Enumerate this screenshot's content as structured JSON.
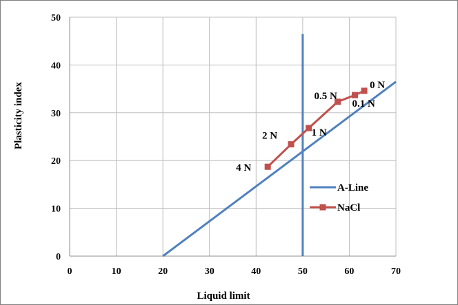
{
  "chart_data": {
    "type": "line",
    "title": "",
    "xlabel": "Liquid  limit",
    "ylabel": "Plasticity  index",
    "xlim": [
      0,
      70
    ],
    "ylim": [
      0,
      50
    ],
    "x_ticks": [
      "0",
      "10",
      "20",
      "30",
      "40",
      "50",
      "60",
      "70"
    ],
    "y_ticks": [
      "0",
      "10",
      "20",
      "30",
      "40",
      "50"
    ],
    "grid": true,
    "legend_position": "right",
    "series": [
      {
        "name": "A-Line",
        "color": "#4f81bd",
        "marker": "none",
        "points": [
          [
            20,
            0
          ],
          [
            70,
            36.5
          ]
        ]
      },
      {
        "name": "NaCl",
        "color": "#c0504d",
        "marker": "square",
        "points": [
          [
            42.5,
            18.7
          ],
          [
            47.5,
            23.4
          ],
          [
            51.3,
            26.8
          ],
          [
            57.5,
            32.3
          ],
          [
            61.2,
            33.7
          ],
          [
            63.2,
            34.6
          ]
        ],
        "point_labels": [
          "4 N",
          "2 N",
          "1 N",
          "0.5 N",
          "0.1 N",
          "0 N"
        ]
      }
    ],
    "vertical_lines": [
      {
        "x": 50,
        "y_top": 46.5,
        "color": "#4f81bd"
      }
    ]
  }
}
